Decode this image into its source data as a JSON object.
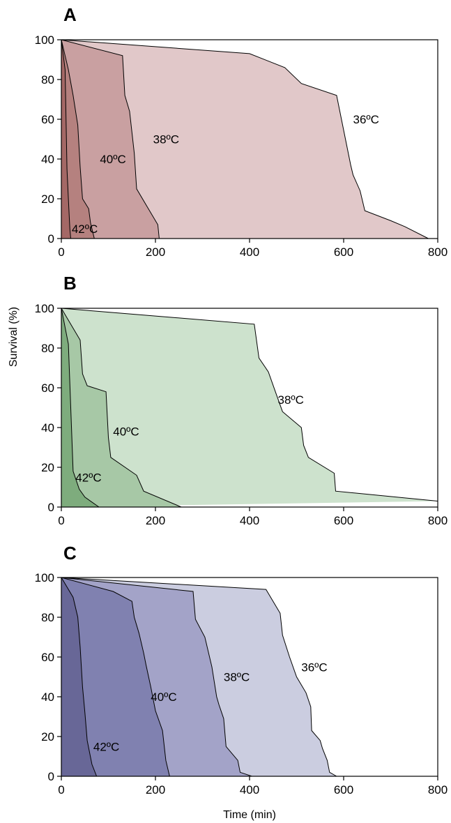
{
  "figure": {
    "ylabel": "Survival (%)",
    "xlabel": "Time (min)"
  },
  "chart_data": [
    {
      "type": "area",
      "panel_label": "A",
      "xlim": [
        0,
        800
      ],
      "ylim": [
        0,
        100
      ],
      "x_ticks": [
        0,
        200,
        400,
        600,
        800
      ],
      "y_ticks": [
        0,
        20,
        40,
        60,
        80,
        100
      ],
      "colors": {
        "36": "#e1c8c9",
        "38": "#c9a0a1",
        "40": "#b5817f",
        "42": "#a46866"
      },
      "series": [
        {
          "key": "36",
          "name": "36ºC",
          "label_at": [
            620,
            60
          ],
          "points": [
            [
              0,
              100
            ],
            [
              400,
              93
            ],
            [
              475,
              86
            ],
            [
              510,
              78
            ],
            [
              585,
              72
            ],
            [
              615,
              37
            ],
            [
              620,
              32
            ],
            [
              635,
              24
            ],
            [
              645,
              14
            ],
            [
              700,
              9
            ],
            [
              730,
              6
            ],
            [
              780,
              0
            ]
          ]
        },
        {
          "key": "38",
          "name": "38ºC",
          "label_at": [
            195,
            50
          ],
          "points": [
            [
              0,
              100
            ],
            [
              130,
              92
            ],
            [
              135,
              72
            ],
            [
              145,
              64
            ],
            [
              155,
              43
            ],
            [
              160,
              25
            ],
            [
              180,
              17
            ],
            [
              205,
              7
            ],
            [
              208,
              0
            ]
          ]
        },
        {
          "key": "40",
          "name": "40ºC",
          "label_at": [
            82,
            40
          ],
          "points": [
            [
              0,
              100
            ],
            [
              15,
              85
            ],
            [
              25,
              72
            ],
            [
              35,
              57
            ],
            [
              40,
              36
            ],
            [
              45,
              20
            ],
            [
              58,
              15
            ],
            [
              62,
              8
            ],
            [
              70,
              0
            ]
          ]
        },
        {
          "key": "42",
          "name": "42ºC",
          "label_at": [
            22,
            5
          ],
          "points": [
            [
              0,
              100
            ],
            [
              8,
              85
            ],
            [
              12,
              35
            ],
            [
              15,
              20
            ],
            [
              18,
              5
            ],
            [
              20,
              0
            ]
          ]
        }
      ]
    },
    {
      "type": "area",
      "panel_label": "B",
      "xlim": [
        0,
        800
      ],
      "ylim": [
        0,
        100
      ],
      "x_ticks": [
        0,
        200,
        400,
        600,
        800
      ],
      "y_ticks": [
        0,
        20,
        40,
        60,
        80,
        100
      ],
      "colors": {
        "38": "#cde2cd",
        "40": "#a7c8a6",
        "42": "#7eac7d"
      },
      "series": [
        {
          "key": "38",
          "name": "38ºC",
          "label_at": [
            460,
            54
          ],
          "points": [
            [
              0,
              100
            ],
            [
              410,
              92
            ],
            [
              420,
              75
            ],
            [
              440,
              68
            ],
            [
              455,
              58
            ],
            [
              470,
              48
            ],
            [
              510,
              40
            ],
            [
              515,
              31
            ],
            [
              525,
              25
            ],
            [
              580,
              17
            ],
            [
              583,
              8
            ],
            [
              800,
              3
            ]
          ]
        },
        {
          "key": "40",
          "name": "40ºC",
          "label_at": [
            110,
            38
          ],
          "points": [
            [
              0,
              100
            ],
            [
              40,
              84
            ],
            [
              45,
              67
            ],
            [
              55,
              61
            ],
            [
              95,
              58
            ],
            [
              100,
              35
            ],
            [
              105,
              25
            ],
            [
              160,
              16
            ],
            [
              175,
              8
            ],
            [
              255,
              0
            ]
          ]
        },
        {
          "key": "42",
          "name": "42ºC",
          "label_at": [
            30,
            15
          ],
          "points": [
            [
              0,
              100
            ],
            [
              15,
              82
            ],
            [
              20,
              50
            ],
            [
              25,
              18
            ],
            [
              38,
              9
            ],
            [
              50,
              5
            ],
            [
              80,
              0
            ]
          ]
        }
      ]
    },
    {
      "type": "area",
      "panel_label": "C",
      "xlim": [
        0,
        800
      ],
      "ylim": [
        0,
        100
      ],
      "x_ticks": [
        0,
        200,
        400,
        600,
        800
      ],
      "y_ticks": [
        0,
        20,
        40,
        60,
        80,
        100
      ],
      "colors": {
        "36": "#cbcde0",
        "38": "#a3a3c8",
        "40": "#8081b0",
        "42": "#686797"
      },
      "series": [
        {
          "key": "36",
          "name": "36ºC",
          "label_at": [
            510,
            55
          ],
          "points": [
            [
              0,
              100
            ],
            [
              435,
              94
            ],
            [
              465,
              82
            ],
            [
              470,
              71
            ],
            [
              485,
              60
            ],
            [
              500,
              50
            ],
            [
              520,
              42
            ],
            [
              530,
              35
            ],
            [
              532,
              23
            ],
            [
              550,
              18
            ],
            [
              555,
              14
            ],
            [
              565,
              8
            ],
            [
              570,
              2
            ],
            [
              585,
              0
            ]
          ]
        },
        {
          "key": "38",
          "name": "38ºC",
          "label_at": [
            345,
            50
          ],
          "points": [
            [
              0,
              100
            ],
            [
              280,
              93
            ],
            [
              285,
              79
            ],
            [
              305,
              70
            ],
            [
              320,
              55
            ],
            [
              330,
              40
            ],
            [
              335,
              36
            ],
            [
              345,
              29
            ],
            [
              350,
              15
            ],
            [
              375,
              8
            ],
            [
              380,
              2
            ],
            [
              405,
              0
            ]
          ]
        },
        {
          "key": "40",
          "name": "40ºC",
          "label_at": [
            190,
            40
          ],
          "points": [
            [
              0,
              100
            ],
            [
              110,
              93
            ],
            [
              150,
              88
            ],
            [
              155,
              80
            ],
            [
              165,
              72
            ],
            [
              175,
              62
            ],
            [
              180,
              56
            ],
            [
              190,
              45
            ],
            [
              200,
              33
            ],
            [
              215,
              23
            ],
            [
              222,
              8
            ],
            [
              230,
              0
            ]
          ]
        },
        {
          "key": "42",
          "name": "42ºC",
          "label_at": [
            68,
            15
          ],
          "points": [
            [
              0,
              100
            ],
            [
              25,
              90
            ],
            [
              35,
              80
            ],
            [
              40,
              65
            ],
            [
              45,
              45
            ],
            [
              50,
              32
            ],
            [
              55,
              18
            ],
            [
              65,
              6
            ],
            [
              75,
              0
            ]
          ]
        }
      ]
    }
  ]
}
